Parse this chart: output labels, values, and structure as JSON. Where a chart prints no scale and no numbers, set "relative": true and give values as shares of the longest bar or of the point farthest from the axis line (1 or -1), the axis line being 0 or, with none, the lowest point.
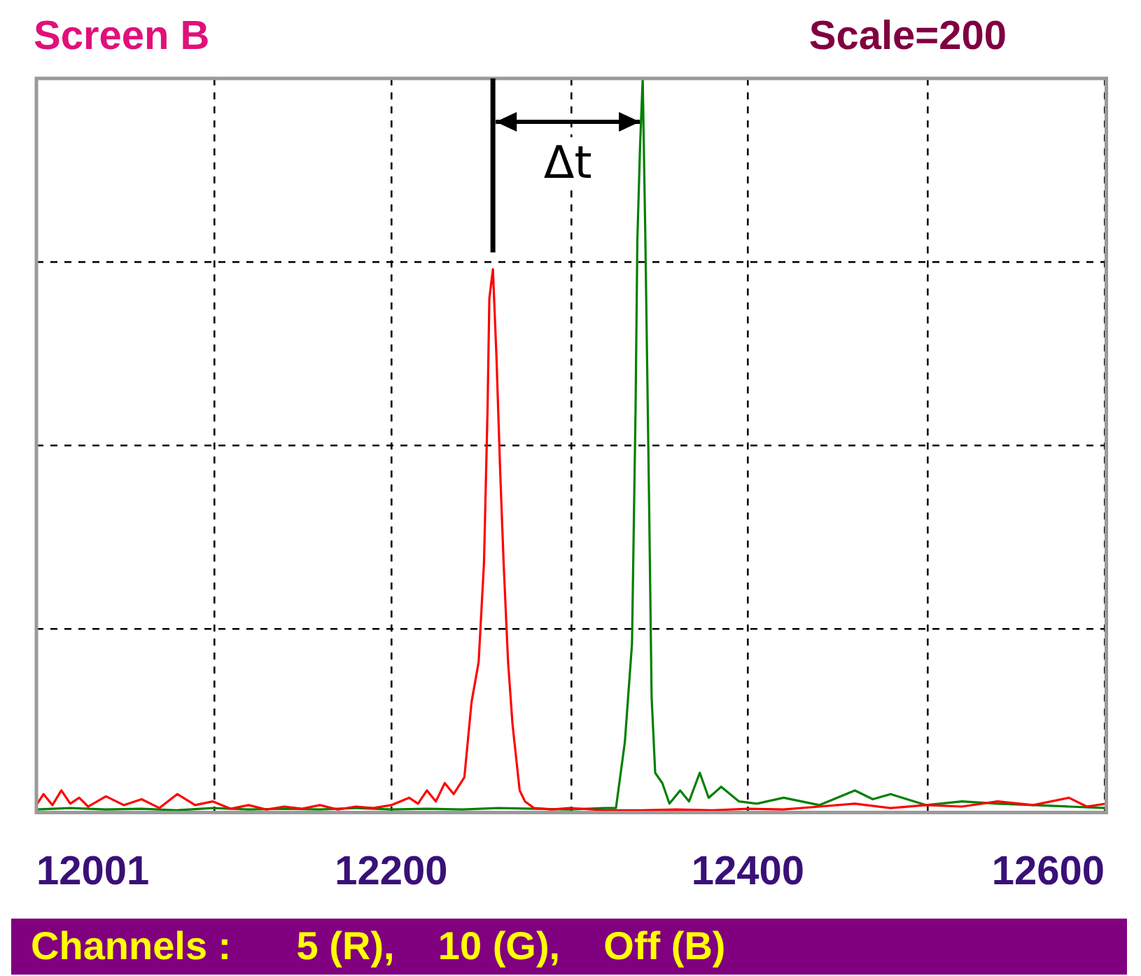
{
  "chart_data": {
    "type": "line",
    "title": "Screen B",
    "subtitle": "Scale=200",
    "relative": true,
    "xlim": [
      12001,
      12601
    ],
    "xticks": [
      12001,
      {
        "value": 12101,
        "label": null
      },
      12200,
      {
        "value": 12301,
        "label": null
      },
      12400,
      {
        "value": 12501,
        "label": null
      },
      12600
    ],
    "grid": true,
    "legend": false,
    "marker": "none",
    "line_style": "solid",
    "annotations": [
      "Δt",
      "Channels :      5 (R),    10 (G),    Off (B)"
    ],
    "series": [
      {
        "color": "#ff0000",
        "x": [
          12001,
          12005,
          12010,
          12015,
          12020,
          12025,
          12030,
          12040,
          12050,
          12060,
          12070,
          12080,
          12090,
          12100,
          12110,
          12120,
          12130,
          12140,
          12150,
          12160,
          12170,
          12180,
          12190,
          12200,
          12210,
          12215,
          12220,
          12225,
          12230,
          12235,
          12241,
          12245,
          12249,
          12252,
          12254,
          12255,
          12257,
          12259,
          12261,
          12263,
          12265.5,
          12268,
          12272,
          12275,
          12280,
          12290,
          12300,
          12320,
          12340,
          12360,
          12380,
          12400,
          12420,
          12440,
          12460,
          12480,
          12500,
          12520,
          12540,
          12560,
          12580,
          12590,
          12601
        ],
        "values": [
          0.01,
          0.025,
          0.01,
          0.03,
          0.012,
          0.02,
          0.008,
          0.022,
          0.01,
          0.018,
          0.006,
          0.025,
          0.01,
          0.015,
          0.005,
          0.01,
          0.004,
          0.008,
          0.005,
          0.01,
          0.004,
          0.008,
          0.006,
          0.01,
          0.02,
          0.012,
          0.03,
          0.015,
          0.04,
          0.025,
          0.048,
          0.15,
          0.205,
          0.34,
          0.55,
          0.7,
          0.74,
          0.62,
          0.47,
          0.34,
          0.205,
          0.12,
          0.03,
          0.015,
          0.006,
          0.004,
          0.006,
          0.003,
          0.003,
          0.004,
          0.003,
          0.005,
          0.004,
          0.008,
          0.012,
          0.006,
          0.01,
          0.008,
          0.015,
          0.01,
          0.02,
          0.008,
          0.012
        ]
      },
      {
        "color": "#008000",
        "x": [
          12001,
          12020,
          12040,
          12060,
          12080,
          12100,
          12120,
          12140,
          12160,
          12180,
          12200,
          12220,
          12240,
          12260,
          12280,
          12300,
          12320,
          12326,
          12331,
          12335,
          12337,
          12338,
          12339.5,
          12341,
          12342.5,
          12344.6,
          12346,
          12348,
          12352,
          12356,
          12362,
          12367,
          12373,
          12378,
          12385,
          12395,
          12405,
          12420,
          12440,
          12460,
          12470,
          12480,
          12500,
          12520,
          12540,
          12560,
          12580,
          12601
        ],
        "values": [
          0.004,
          0.006,
          0.004,
          0.005,
          0.003,
          0.006,
          0.004,
          0.005,
          0.004,
          0.006,
          0.004,
          0.005,
          0.004,
          0.006,
          0.005,
          0.004,
          0.006,
          0.006,
          0.096,
          0.23,
          0.55,
          0.78,
          0.906,
          1,
          0.78,
          0.42,
          0.157,
          0.054,
          0.04,
          0.012,
          0.03,
          0.015,
          0.054,
          0.02,
          0.035,
          0.015,
          0.012,
          0.02,
          0.01,
          0.03,
          0.018,
          0.025,
          0.01,
          0.015,
          0.012,
          0.01,
          0.008,
          0.006
        ]
      }
    ]
  }
}
